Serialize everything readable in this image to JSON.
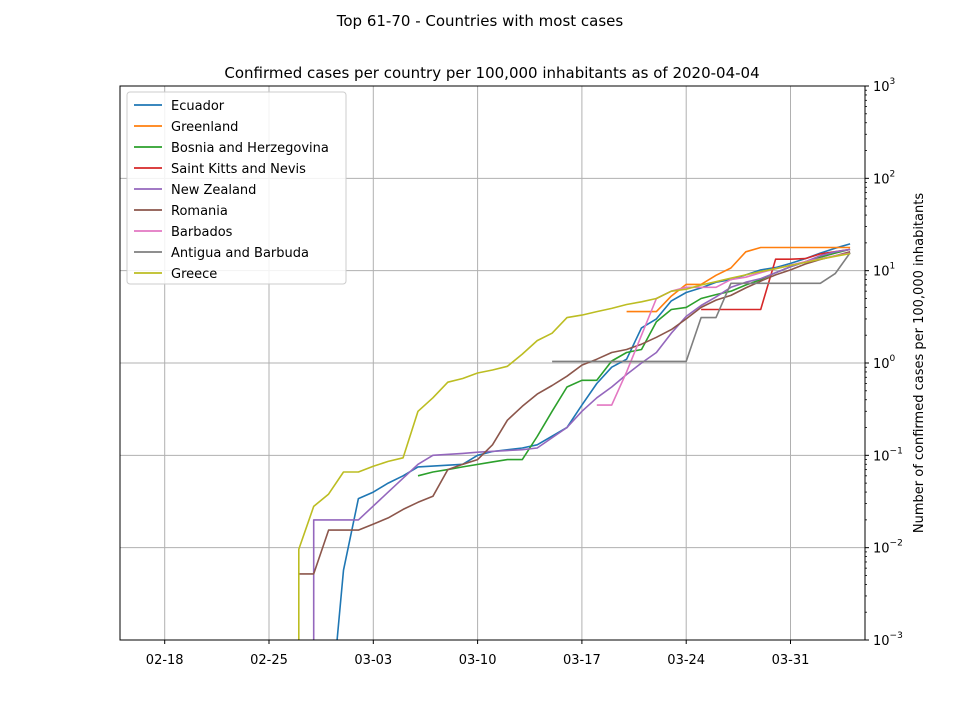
{
  "figure": {
    "suptitle": "Top 61-70 - Countries with most cases"
  },
  "chart_data": {
    "type": "line",
    "title": "Confirmed cases per country per 100,000 inhabitants as of 2020-04-04",
    "xlabel": "",
    "ylabel": "Number of confirmed cases per 100,000 inhabitants",
    "y_scale": "log",
    "y_axis_side": "right",
    "ylim": [
      0.001,
      1000
    ],
    "xlim": [
      "2020-02-15",
      "2020-04-05"
    ],
    "x_ticks": [
      {
        "date": "2020-02-18",
        "label": "02-18"
      },
      {
        "date": "2020-02-25",
        "label": "02-25"
      },
      {
        "date": "2020-03-03",
        "label": "03-03"
      },
      {
        "date": "2020-03-10",
        "label": "03-10"
      },
      {
        "date": "2020-03-17",
        "label": "03-17"
      },
      {
        "date": "2020-03-24",
        "label": "03-24"
      },
      {
        "date": "2020-03-31",
        "label": "03-31"
      }
    ],
    "y_ticks": [
      {
        "value": 0.001,
        "base": "10",
        "exp": "−3"
      },
      {
        "value": 0.01,
        "base": "10",
        "exp": "−2"
      },
      {
        "value": 0.1,
        "base": "10",
        "exp": "−1"
      },
      {
        "value": 1,
        "base": "10",
        "exp": "0"
      },
      {
        "value": 10,
        "base": "10",
        "exp": "1"
      },
      {
        "value": 100,
        "base": "10",
        "exp": "2"
      },
      {
        "value": 1000,
        "base": "10",
        "exp": "3"
      }
    ],
    "grid": true,
    "legend_position": "top-left",
    "series": [
      {
        "name": "Ecuador",
        "color": "#1f77b4",
        "points": [
          [
            "2020-02-29",
            0.0001
          ],
          [
            "2020-03-01",
            0.0057
          ],
          [
            "2020-03-02",
            0.034
          ],
          [
            "2020-03-03",
            0.04
          ],
          [
            "2020-03-04",
            0.05
          ],
          [
            "2020-03-05",
            0.06
          ],
          [
            "2020-03-06",
            0.075
          ],
          [
            "2020-03-09",
            0.08
          ],
          [
            "2020-03-10",
            0.1
          ],
          [
            "2020-03-11",
            0.11
          ],
          [
            "2020-03-13",
            0.12
          ],
          [
            "2020-03-14",
            0.13
          ],
          [
            "2020-03-16",
            0.2
          ],
          [
            "2020-03-17",
            0.35
          ],
          [
            "2020-03-18",
            0.6
          ],
          [
            "2020-03-19",
            0.9
          ],
          [
            "2020-03-20",
            1.1
          ],
          [
            "2020-03-21",
            2.4
          ],
          [
            "2020-03-22",
            3.0
          ],
          [
            "2020-03-23",
            4.7
          ],
          [
            "2020-03-24",
            5.8
          ],
          [
            "2020-03-25",
            6.5
          ],
          [
            "2020-03-26",
            7.5
          ],
          [
            "2020-03-27",
            8.0
          ],
          [
            "2020-03-28",
            9.0
          ],
          [
            "2020-03-29",
            10.2
          ],
          [
            "2020-03-30",
            10.8
          ],
          [
            "2020-03-31",
            12.0
          ],
          [
            "2020-04-01",
            13.5
          ],
          [
            "2020-04-02",
            15.5
          ],
          [
            "2020-04-03",
            17.5
          ],
          [
            "2020-04-04",
            19.5
          ]
        ]
      },
      {
        "name": "Greenland",
        "color": "#ff7f0e",
        "points": [
          [
            "2020-03-20",
            3.6
          ],
          [
            "2020-03-22",
            3.6
          ],
          [
            "2020-03-23",
            5.3
          ],
          [
            "2020-03-24",
            7.1
          ],
          [
            "2020-03-25",
            7.1
          ],
          [
            "2020-03-26",
            8.9
          ],
          [
            "2020-03-27",
            10.7
          ],
          [
            "2020-03-28",
            16.0
          ],
          [
            "2020-03-29",
            17.8
          ],
          [
            "2020-04-04",
            17.8
          ]
        ]
      },
      {
        "name": "Bosnia and Herzegovina",
        "color": "#2ca02c",
        "points": [
          [
            "2020-03-06",
            0.06
          ],
          [
            "2020-03-07",
            0.066
          ],
          [
            "2020-03-08",
            0.07
          ],
          [
            "2020-03-09",
            0.075
          ],
          [
            "2020-03-11",
            0.085
          ],
          [
            "2020-03-12",
            0.09
          ],
          [
            "2020-03-13",
            0.09
          ],
          [
            "2020-03-14",
            0.16
          ],
          [
            "2020-03-15",
            0.3
          ],
          [
            "2020-03-16",
            0.55
          ],
          [
            "2020-03-17",
            0.65
          ],
          [
            "2020-03-18",
            0.65
          ],
          [
            "2020-03-19",
            1.05
          ],
          [
            "2020-03-20",
            1.3
          ],
          [
            "2020-03-21",
            1.4
          ],
          [
            "2020-03-22",
            2.8
          ],
          [
            "2020-03-23",
            3.8
          ],
          [
            "2020-03-24",
            4.0
          ],
          [
            "2020-03-25",
            5.0
          ],
          [
            "2020-03-26",
            5.5
          ],
          [
            "2020-03-27",
            6.0
          ],
          [
            "2020-03-28",
            7.0
          ],
          [
            "2020-03-29",
            8.0
          ],
          [
            "2020-03-30",
            9.5
          ],
          [
            "2020-03-31",
            11.0
          ],
          [
            "2020-04-01",
            12.5
          ],
          [
            "2020-04-02",
            14.0
          ],
          [
            "2020-04-03",
            15.5
          ],
          [
            "2020-04-04",
            17.0
          ]
        ]
      },
      {
        "name": "Saint Kitts and Nevis",
        "color": "#d62728",
        "points": [
          [
            "2020-03-25",
            3.8
          ],
          [
            "2020-03-29",
            3.8
          ],
          [
            "2020-03-30",
            13.3
          ],
          [
            "2020-03-31",
            13.3
          ],
          [
            "2020-04-01",
            13.5
          ],
          [
            "2020-04-02",
            15.2
          ],
          [
            "2020-04-04",
            17.0
          ]
        ]
      },
      {
        "name": "New Zealand",
        "color": "#9467bd",
        "points": [
          [
            "2020-02-28",
            0.0001
          ],
          [
            "2020-02-28",
            0.02
          ],
          [
            "2020-03-02",
            0.02
          ],
          [
            "2020-03-04",
            0.04
          ],
          [
            "2020-03-06",
            0.08
          ],
          [
            "2020-03-07",
            0.1
          ],
          [
            "2020-03-09",
            0.105
          ],
          [
            "2020-03-10",
            0.108
          ],
          [
            "2020-03-13",
            0.115
          ],
          [
            "2020-03-14",
            0.12
          ],
          [
            "2020-03-16",
            0.2
          ],
          [
            "2020-03-17",
            0.3
          ],
          [
            "2020-03-18",
            0.42
          ],
          [
            "2020-03-19",
            0.55
          ],
          [
            "2020-03-20",
            0.75
          ],
          [
            "2020-03-21",
            1.0
          ],
          [
            "2020-03-22",
            1.3
          ],
          [
            "2020-03-23",
            2.1
          ],
          [
            "2020-03-24",
            3.2
          ],
          [
            "2020-03-25",
            4.2
          ],
          [
            "2020-03-26",
            5.2
          ],
          [
            "2020-03-27",
            6.6
          ],
          [
            "2020-03-28",
            7.5
          ],
          [
            "2020-03-29",
            8.2
          ],
          [
            "2020-03-30",
            9.5
          ],
          [
            "2020-03-31",
            11.0
          ],
          [
            "2020-04-01",
            12.5
          ],
          [
            "2020-04-02",
            14.5
          ],
          [
            "2020-04-03",
            16.0
          ],
          [
            "2020-04-04",
            17.0
          ]
        ]
      },
      {
        "name": "Romania",
        "color": "#8c564b",
        "points": [
          [
            "2020-02-27",
            0.0052
          ],
          [
            "2020-02-28",
            0.0052
          ],
          [
            "2020-02-29",
            0.0155
          ],
          [
            "2020-03-01",
            0.0155
          ],
          [
            "2020-03-02",
            0.0155
          ],
          [
            "2020-03-03",
            0.018
          ],
          [
            "2020-03-04",
            0.021
          ],
          [
            "2020-03-05",
            0.026
          ],
          [
            "2020-03-06",
            0.031
          ],
          [
            "2020-03-07",
            0.036
          ],
          [
            "2020-03-08",
            0.07
          ],
          [
            "2020-03-09",
            0.08
          ],
          [
            "2020-03-10",
            0.09
          ],
          [
            "2020-03-11",
            0.13
          ],
          [
            "2020-03-12",
            0.24
          ],
          [
            "2020-03-13",
            0.34
          ],
          [
            "2020-03-14",
            0.46
          ],
          [
            "2020-03-15",
            0.57
          ],
          [
            "2020-03-16",
            0.72
          ],
          [
            "2020-03-17",
            0.95
          ],
          [
            "2020-03-18",
            1.1
          ],
          [
            "2020-03-19",
            1.3
          ],
          [
            "2020-03-20",
            1.4
          ],
          [
            "2020-03-21",
            1.6
          ],
          [
            "2020-03-22",
            1.9
          ],
          [
            "2020-03-23",
            2.3
          ],
          [
            "2020-03-24",
            3.0
          ],
          [
            "2020-03-25",
            4.0
          ],
          [
            "2020-03-26",
            4.8
          ],
          [
            "2020-03-27",
            5.4
          ],
          [
            "2020-03-28",
            6.5
          ],
          [
            "2020-03-29",
            7.7
          ],
          [
            "2020-03-30",
            9.0
          ],
          [
            "2020-03-31",
            10.2
          ],
          [
            "2020-04-01",
            11.8
          ],
          [
            "2020-04-02",
            13.2
          ],
          [
            "2020-04-03",
            14.5
          ],
          [
            "2020-04-04",
            16.0
          ]
        ]
      },
      {
        "name": "Barbados",
        "color": "#e377c2",
        "points": [
          [
            "2020-03-18",
            0.35
          ],
          [
            "2020-03-19",
            0.35
          ],
          [
            "2020-03-20",
            0.8
          ],
          [
            "2020-03-21",
            2.0
          ],
          [
            "2020-03-22",
            5.0
          ],
          [
            "2020-03-23",
            6.0
          ],
          [
            "2020-03-24",
            6.6
          ],
          [
            "2020-03-25",
            6.6
          ],
          [
            "2020-03-26",
            6.6
          ],
          [
            "2020-03-27",
            8.0
          ],
          [
            "2020-03-28",
            8.5
          ],
          [
            "2020-03-29",
            9.5
          ],
          [
            "2020-03-30",
            10.5
          ],
          [
            "2020-03-31",
            11.5
          ],
          [
            "2020-04-01",
            12.5
          ],
          [
            "2020-04-02",
            13.5
          ],
          [
            "2020-04-03",
            14.5
          ],
          [
            "2020-04-04",
            15.5
          ]
        ]
      },
      {
        "name": "Antigua and Barbuda",
        "color": "#7f7f7f",
        "points": [
          [
            "2020-03-15",
            1.04
          ],
          [
            "2020-03-24",
            1.04
          ],
          [
            "2020-03-25",
            3.1
          ],
          [
            "2020-03-26",
            3.1
          ],
          [
            "2020-03-27",
            7.3
          ],
          [
            "2020-04-02",
            7.3
          ],
          [
            "2020-04-03",
            9.3
          ],
          [
            "2020-04-04",
            15.6
          ]
        ]
      },
      {
        "name": "Greece",
        "color": "#bcbd22",
        "points": [
          [
            "2020-02-27",
            0.0001
          ],
          [
            "2020-02-27",
            0.0096
          ],
          [
            "2020-02-28",
            0.028
          ],
          [
            "2020-02-29",
            0.038
          ],
          [
            "2020-03-01",
            0.066
          ],
          [
            "2020-03-02",
            0.066
          ],
          [
            "2020-03-03",
            0.076
          ],
          [
            "2020-03-04",
            0.086
          ],
          [
            "2020-03-05",
            0.094
          ],
          [
            "2020-03-06",
            0.3
          ],
          [
            "2020-03-07",
            0.42
          ],
          [
            "2020-03-08",
            0.62
          ],
          [
            "2020-03-09",
            0.68
          ],
          [
            "2020-03-10",
            0.78
          ],
          [
            "2020-03-11",
            0.84
          ],
          [
            "2020-03-12",
            0.92
          ],
          [
            "2020-03-13",
            1.25
          ],
          [
            "2020-03-14",
            1.75
          ],
          [
            "2020-03-15",
            2.1
          ],
          [
            "2020-03-16",
            3.1
          ],
          [
            "2020-03-17",
            3.3
          ],
          [
            "2020-03-18",
            3.6
          ],
          [
            "2020-03-19",
            3.9
          ],
          [
            "2020-03-20",
            4.3
          ],
          [
            "2020-03-21",
            4.6
          ],
          [
            "2020-03-22",
            5.0
          ],
          [
            "2020-03-23",
            6.0
          ],
          [
            "2020-03-24",
            6.3
          ],
          [
            "2020-03-25",
            7.0
          ],
          [
            "2020-03-26",
            7.6
          ],
          [
            "2020-03-27",
            8.3
          ],
          [
            "2020-03-28",
            9.0
          ],
          [
            "2020-03-29",
            9.8
          ],
          [
            "2020-03-30",
            10.5
          ],
          [
            "2020-03-31",
            11.4
          ],
          [
            "2020-04-01",
            12.3
          ],
          [
            "2020-04-02",
            13.3
          ],
          [
            "2020-04-03",
            14.3
          ],
          [
            "2020-04-04",
            15.3
          ]
        ]
      }
    ]
  }
}
